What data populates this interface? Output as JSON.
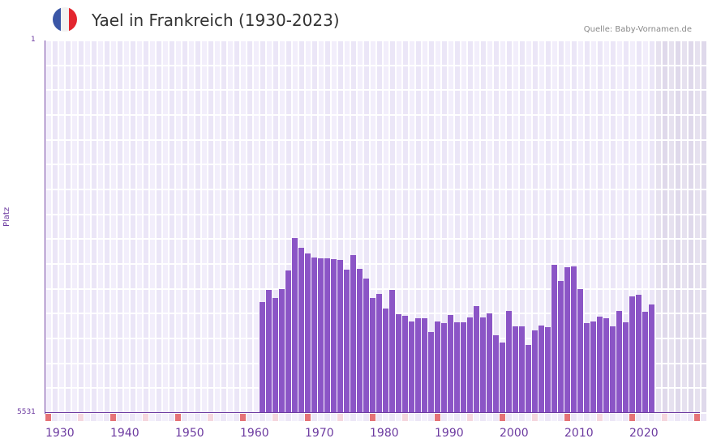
{
  "header": {
    "title": "Yael in Frankreich (1930-2023)",
    "source": "Quelle: Baby-Vornamen.de",
    "flag_colors": [
      "#3a56a6",
      "#f2f2f2",
      "#e3262f"
    ]
  },
  "colors": {
    "bar": "#8b55c6",
    "axis": "#6c3aa0",
    "grid_a": "#f2eefb",
    "grid_b": "#ebe6f7",
    "future_a": "#e6e1ef",
    "future_b": "#dfd9eb",
    "marker_decade": "#e57377",
    "marker_half": "#f5d7de"
  },
  "chart_data": {
    "type": "bar",
    "title": "Yael in Frankreich (1930-2023)",
    "xlabel": "",
    "ylabel": "Platz",
    "y_axis_inverted": true,
    "ylim": [
      1,
      5531
    ],
    "y_ticks": [
      "1",
      "5531"
    ],
    "x_tick_labels": [
      "1930",
      "1940",
      "1950",
      "1960",
      "1970",
      "1980",
      "1990",
      "2000",
      "2010",
      "2020"
    ],
    "x_range": [
      1928,
      2028
    ],
    "shaded_future_from": 2022,
    "categories": [
      1961,
      1962,
      1963,
      1964,
      1965,
      1966,
      1967,
      1968,
      1969,
      1970,
      1971,
      1972,
      1973,
      1974,
      1975,
      1976,
      1977,
      1978,
      1979,
      1980,
      1981,
      1982,
      1983,
      1984,
      1985,
      1986,
      1987,
      1988,
      1989,
      1990,
      1991,
      1992,
      1993,
      1994,
      1995,
      1996,
      1997,
      1998,
      1999,
      2000,
      2001,
      2002,
      2003,
      2004,
      2005,
      2006,
      2007,
      2008,
      2009,
      2010,
      2011,
      2012,
      2013,
      2014,
      2015,
      2016,
      2017,
      2018,
      2019,
      2020,
      2021
    ],
    "values": [
      3882,
      3702,
      3822,
      3690,
      3413,
      2932,
      3076,
      3160,
      3220,
      3232,
      3232,
      3244,
      3256,
      3401,
      3184,
      3389,
      3533,
      3822,
      3762,
      3978,
      3702,
      4063,
      4087,
      4171,
      4123,
      4123,
      4328,
      4171,
      4195,
      4075,
      4183,
      4183,
      4111,
      3942,
      4111,
      4051,
      4376,
      4484,
      4015,
      4244,
      4244,
      4520,
      4304,
      4232,
      4256,
      3329,
      3569,
      3365,
      3353,
      3690,
      4195,
      4171,
      4099,
      4123,
      4244,
      4015,
      4183,
      3798,
      3774,
      4027,
      3918
    ]
  }
}
